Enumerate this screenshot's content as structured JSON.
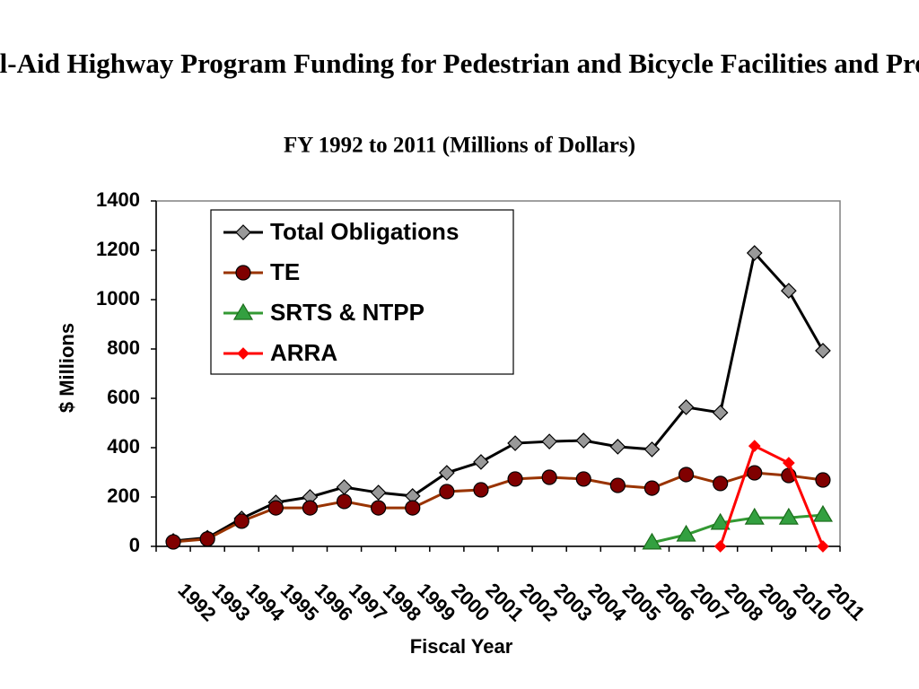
{
  "chart_data": {
    "type": "line",
    "title": "Federal-Aid Highway Program Funding for Pedestrian and Bicycle Facilities and Programs",
    "subtitle": "FY 1992 to 2011 (Millions of Dollars)",
    "x_label": "Fiscal Year",
    "y_label": "$ Millions",
    "categories": [
      "1992",
      "1993",
      "1994",
      "1995",
      "1996",
      "1997",
      "1998",
      "1999",
      "2000",
      "2001",
      "2002",
      "2003",
      "2004",
      "2005",
      "2006",
      "2007",
      "2008",
      "2009",
      "2010",
      "2011"
    ],
    "ylim": [
      0,
      1400
    ],
    "yticks": [
      0,
      200,
      400,
      600,
      800,
      1000,
      1200,
      1400
    ],
    "legend": "upper left",
    "series": [
      {
        "name": "Total Obligations",
        "color": "#000000",
        "marker": "diamond",
        "marker_color": "#999999",
        "values": [
          22,
          35,
          113,
          178,
          200,
          240,
          218,
          204,
          298,
          342,
          418,
          425,
          429,
          404,
          393,
          564,
          542,
          1189,
          1036,
          793
        ]
      },
      {
        "name": "TE",
        "color": "#993300",
        "marker": "circle",
        "marker_color": "#800000",
        "values": [
          18,
          30,
          102,
          156,
          156,
          182,
          156,
          156,
          222,
          229,
          273,
          280,
          273,
          247,
          236,
          291,
          255,
          298,
          287,
          269
        ]
      },
      {
        "name": "SRTS & NTPP",
        "color": "#339933",
        "marker": "triangle",
        "marker_color": "#33a040",
        "values": [
          null,
          null,
          null,
          null,
          null,
          null,
          null,
          null,
          null,
          null,
          null,
          null,
          null,
          null,
          15,
          47,
          95,
          116,
          116,
          127
        ]
      },
      {
        "name": "ARRA",
        "color": "#ff0000",
        "marker": "diamond",
        "marker_color": "#ff0000",
        "values": [
          null,
          null,
          null,
          null,
          null,
          null,
          null,
          null,
          null,
          null,
          null,
          null,
          null,
          null,
          null,
          null,
          0,
          407,
          338,
          0
        ]
      }
    ]
  }
}
